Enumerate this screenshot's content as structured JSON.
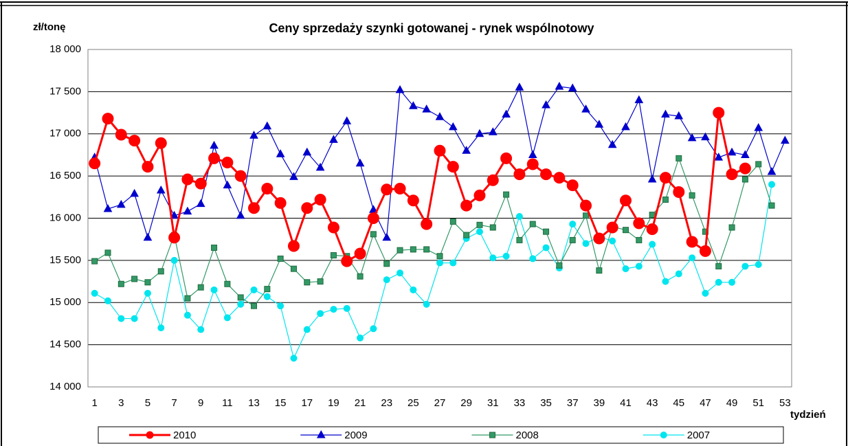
{
  "chart_data": {
    "type": "line",
    "title": "Ceny sprzedaży szynki gotowanej -  rynek wspólnotowy",
    "y_label": "zł/tonę",
    "x_label": "tydzień",
    "categories": [
      1,
      null,
      3,
      null,
      5,
      null,
      7,
      null,
      9,
      null,
      11,
      null,
      13,
      null,
      15,
      null,
      17,
      null,
      19,
      null,
      21,
      null,
      23,
      null,
      25,
      null,
      27,
      null,
      29,
      null,
      31,
      null,
      33,
      null,
      35,
      null,
      37,
      null,
      39,
      null,
      41,
      null,
      43,
      null,
      45,
      null,
      47,
      null,
      49,
      null,
      51,
      null,
      53
    ],
    "ylim": [
      14000,
      18000
    ],
    "yticks": [
      {
        "value": 14000,
        "label": "14 000"
      },
      {
        "value": 14500,
        "label": "14 500"
      },
      {
        "value": 15000,
        "label": "15 000"
      },
      {
        "value": 15500,
        "label": "15 500"
      },
      {
        "value": 16000,
        "label": "16 000"
      },
      {
        "value": 16500,
        "label": "16 500"
      },
      {
        "value": 17000,
        "label": "17 000"
      },
      {
        "value": 17500,
        "label": "17 500"
      },
      {
        "value": 18000,
        "label": "18 000"
      }
    ],
    "grid": true,
    "series": [
      {
        "name": "2010",
        "color": "#ff0000",
        "marker": "circle-large",
        "values": [
          16650,
          17180,
          16990,
          16920,
          16610,
          16890,
          15770,
          16460,
          16410,
          16710,
          16660,
          16500,
          16120,
          16350,
          16180,
          15670,
          16120,
          16220,
          15890,
          15490,
          15580,
          16000,
          16340,
          16350,
          16210,
          15930,
          16800,
          16610,
          16150,
          16270,
          16450,
          16710,
          16520,
          16640,
          16520,
          16480,
          16390,
          16150,
          15760,
          15890,
          16210,
          15940,
          15870,
          16480,
          16310,
          15720,
          15610,
          17250,
          16520,
          16590,
          null,
          null,
          null
        ]
      },
      {
        "name": "2009",
        "color": "#0000cc",
        "marker": "triangle",
        "values": [
          16720,
          16110,
          16160,
          16290,
          15770,
          16330,
          16030,
          16080,
          16170,
          16860,
          16390,
          16030,
          16980,
          17090,
          16760,
          16490,
          16780,
          16600,
          16930,
          17150,
          16650,
          16100,
          15770,
          17520,
          17330,
          17290,
          17200,
          17080,
          16800,
          17000,
          17020,
          17230,
          17550,
          16750,
          17340,
          17560,
          17540,
          17290,
          17110,
          16870,
          17080,
          17400,
          16460,
          17230,
          17210,
          16950,
          16960,
          16720,
          16780,
          16750,
          17070,
          16550,
          16920
        ]
      },
      {
        "name": "2008",
        "color": "#339966",
        "marker": "square",
        "values": [
          15490,
          15590,
          15220,
          15280,
          15240,
          15370,
          15800,
          15050,
          15180,
          15650,
          15220,
          15060,
          14960,
          15160,
          15520,
          15400,
          15240,
          15250,
          15560,
          15550,
          15310,
          15810,
          15460,
          15620,
          15630,
          15630,
          15550,
          15960,
          15800,
          15920,
          15890,
          16280,
          15740,
          15930,
          15840,
          15440,
          15740,
          16030,
          15380,
          15900,
          15860,
          15740,
          16040,
          16220,
          16710,
          16270,
          15840,
          15430,
          15890,
          16460,
          16640,
          16150,
          null
        ]
      },
      {
        "name": "2007",
        "color": "#00e5ee",
        "marker": "circle",
        "values": [
          15110,
          15020,
          14810,
          14810,
          15110,
          14700,
          15500,
          14850,
          14680,
          15150,
          14820,
          14980,
          15150,
          15070,
          14960,
          14340,
          14680,
          14870,
          14920,
          14930,
          14580,
          14690,
          15270,
          15350,
          15150,
          14980,
          15470,
          15470,
          15760,
          15840,
          15530,
          15550,
          16020,
          15520,
          15650,
          15410,
          15930,
          15700,
          15780,
          15730,
          15400,
          15430,
          15690,
          15250,
          15340,
          15530,
          15110,
          15240,
          15240,
          15430,
          15450,
          16400,
          null
        ]
      }
    ]
  }
}
